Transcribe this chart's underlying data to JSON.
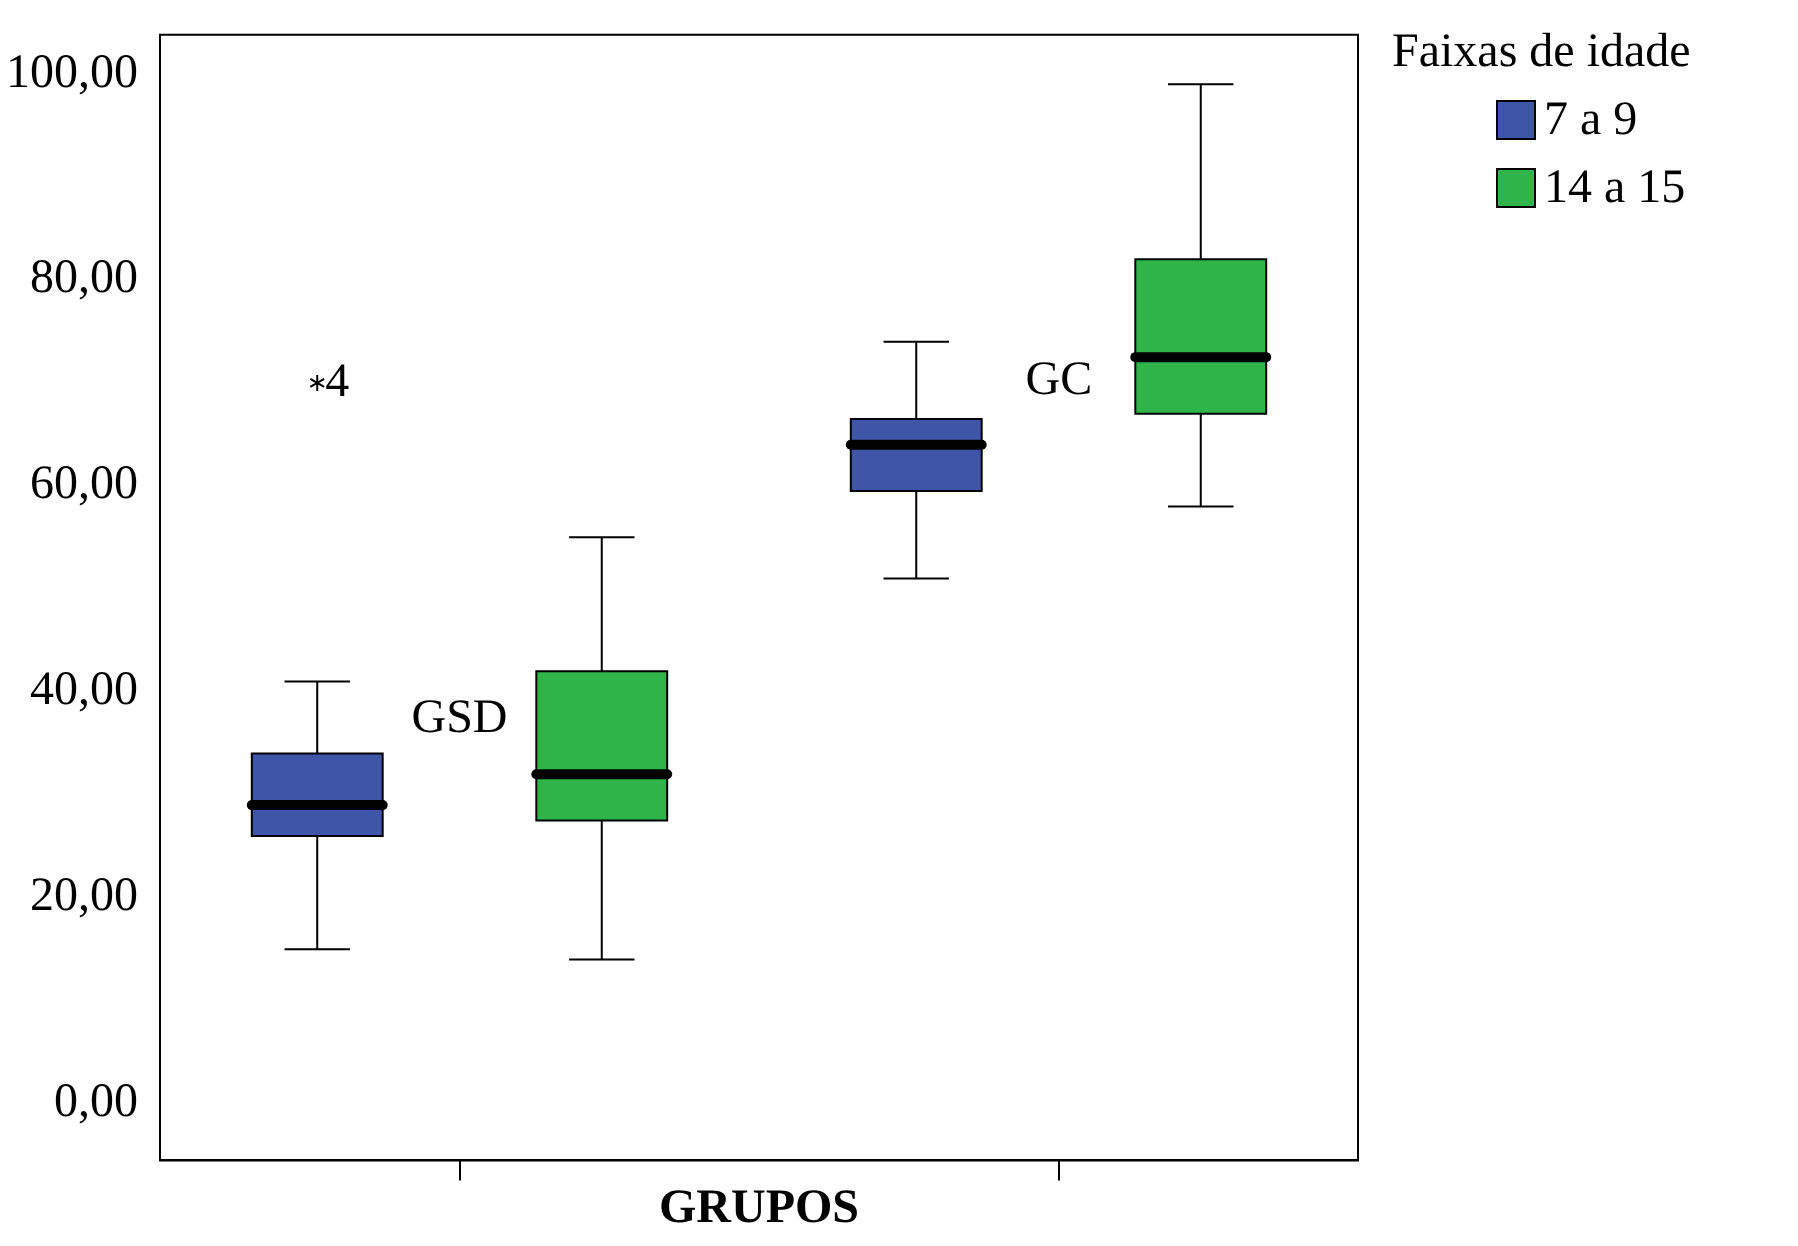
{
  "chart_data": {
    "type": "box",
    "categories": [
      "GSD",
      "GC"
    ],
    "xlabel": "GRUPOS",
    "legend_title": "Faixas de idade",
    "legend": "top right",
    "marker": "star",
    "ylim": [
      -5.5,
      103.8
    ],
    "yticks": [
      {
        "value": 0,
        "label": "0,00"
      },
      {
        "value": 20,
        "label": "20,00"
      },
      {
        "value": 40,
        "label": "40,00"
      },
      {
        "value": 60,
        "label": "60,00"
      },
      {
        "value": 80,
        "label": "80,00"
      },
      {
        "value": 100,
        "label": "100,00"
      }
    ],
    "series": [
      {
        "name": "7 a 9",
        "color": "#3f56a8",
        "boxes": [
          {
            "low": 15,
            "q1": 26,
            "median": 29,
            "q3": 34,
            "high": 41,
            "outliers": [
              70
            ]
          },
          {
            "low": 51,
            "q1": 59.5,
            "median": 64,
            "q3": 66.5,
            "high": 74
          }
        ]
      },
      {
        "name": "14 a 15",
        "color": "#2fb44a",
        "boxes": [
          {
            "low": 14,
            "q1": 27.5,
            "median": 32,
            "q3": 42,
            "high": 55
          },
          {
            "low": 58,
            "q1": 67,
            "median": 72.5,
            "q3": 82,
            "high": 99
          }
        ]
      }
    ],
    "annotations": [
      "4"
    ]
  }
}
